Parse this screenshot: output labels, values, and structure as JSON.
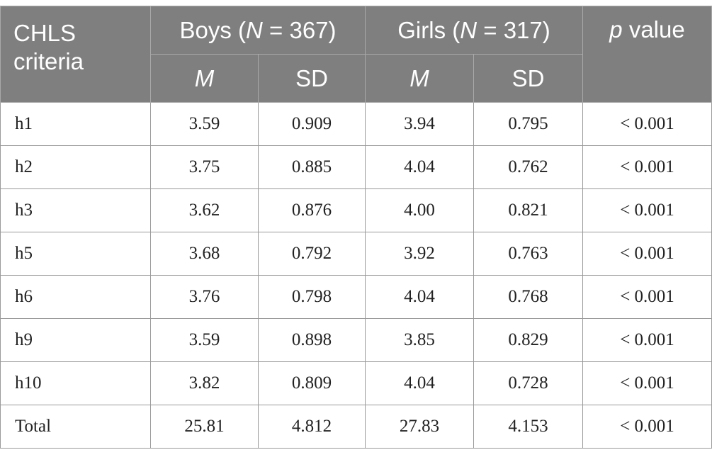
{
  "header": {
    "criteria_label": "CHLS criteria",
    "boys_prefix": "Boys (",
    "boys_n_var": "N",
    "boys_suffix": " = 367)",
    "girls_prefix": "Girls (",
    "girls_n_var": "N",
    "girls_suffix": " = 317)",
    "p_var": "p",
    "p_suffix": " value",
    "mean_label": "M",
    "sd_label": "SD"
  },
  "rows": [
    {
      "label": "h1",
      "boys_m": "3.59",
      "boys_sd": "0.909",
      "girls_m": "3.94",
      "girls_sd": "0.795",
      "p": "< 0.001"
    },
    {
      "label": "h2",
      "boys_m": "3.75",
      "boys_sd": "0.885",
      "girls_m": "4.04",
      "girls_sd": "0.762",
      "p": "< 0.001"
    },
    {
      "label": "h3",
      "boys_m": "3.62",
      "boys_sd": "0.876",
      "girls_m": "4.00",
      "girls_sd": "0.821",
      "p": "< 0.001"
    },
    {
      "label": "h5",
      "boys_m": "3.68",
      "boys_sd": "0.792",
      "girls_m": "3.92",
      "girls_sd": "0.763",
      "p": "< 0.001"
    },
    {
      "label": "h6",
      "boys_m": "3.76",
      "boys_sd": "0.798",
      "girls_m": "4.04",
      "girls_sd": "0.768",
      "p": "< 0.001"
    },
    {
      "label": "h9",
      "boys_m": "3.59",
      "boys_sd": "0.898",
      "girls_m": "3.85",
      "girls_sd": "0.829",
      "p": "< 0.001"
    },
    {
      "label": "h10",
      "boys_m": "3.82",
      "boys_sd": "0.809",
      "girls_m": "4.04",
      "girls_sd": "0.728",
      "p": "< 0.001"
    },
    {
      "label": "Total",
      "boys_m": "25.81",
      "boys_sd": "4.812",
      "girls_m": "27.83",
      "girls_sd": "4.153",
      "p": "< 0.001"
    }
  ]
}
